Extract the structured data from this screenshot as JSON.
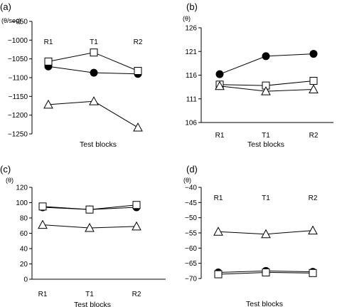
{
  "chart_data": [
    {
      "type": "line",
      "panel_label": "(a)",
      "unit_label": "(θ/sec)",
      "xlabel": "Test blocks",
      "categories": [
        "R1",
        "T1",
        "R2"
      ],
      "category_labels_position": "top",
      "ylim": [
        -1250,
        -950
      ],
      "y_ticks": [
        -950,
        -1000,
        -1050,
        -1100,
        -1150,
        -1200,
        -1250
      ],
      "series": [
        {
          "marker": "filled-circle",
          "values": [
            -1070,
            -1087,
            -1090
          ]
        },
        {
          "marker": "open-square",
          "values": [
            -1057,
            -1033,
            -1082
          ]
        },
        {
          "marker": "open-triangle",
          "values": [
            -1172,
            -1163,
            -1233
          ]
        }
      ]
    },
    {
      "type": "line",
      "panel_label": "(b)",
      "unit_label": "(θ)",
      "xlabel": "Test blocks",
      "categories": [
        "R1",
        "T1",
        "R2"
      ],
      "category_labels_position": "bottom",
      "ylim": [
        106,
        126
      ],
      "y_ticks": [
        126,
        121,
        116,
        111,
        106
      ],
      "series": [
        {
          "marker": "filled-circle",
          "values": [
            116.2,
            120.0,
            120.5
          ]
        },
        {
          "marker": "open-square",
          "values": [
            114.0,
            113.8,
            114.8
          ]
        },
        {
          "marker": "open-triangle",
          "values": [
            113.7,
            112.6,
            113.0
          ]
        }
      ]
    },
    {
      "type": "line",
      "panel_label": "(c)",
      "unit_label": "(θ)",
      "xlabel": "Test blocks",
      "categories": [
        "R1",
        "T1",
        "R2"
      ],
      "category_labels_position": "bottom",
      "ylim": [
        0,
        120
      ],
      "y_ticks": [
        120,
        100,
        80,
        60,
        40,
        20,
        0
      ],
      "series": [
        {
          "marker": "filled-circle",
          "values": [
            94,
            91,
            94
          ]
        },
        {
          "marker": "open-square",
          "values": [
            95,
            91,
            97
          ]
        },
        {
          "marker": "open-triangle",
          "values": [
            71,
            67,
            69
          ]
        }
      ]
    },
    {
      "type": "line",
      "panel_label": "(d)",
      "unit_label": "(θ)",
      "xlabel": "Test blocks",
      "categories": [
        "R1",
        "T1",
        "R2"
      ],
      "category_labels_position": "top",
      "ylim": [
        -70,
        -40
      ],
      "y_ticks": [
        -40,
        -45,
        -50,
        -55,
        -60,
        -65,
        -70
      ],
      "series": [
        {
          "marker": "filled-circle",
          "values": [
            -68.0,
            -67.5,
            -67.8
          ]
        },
        {
          "marker": "open-square",
          "values": [
            -68.6,
            -68.0,
            -68.2
          ]
        },
        {
          "marker": "open-triangle",
          "values": [
            -54.6,
            -55.4,
            -54.2
          ]
        }
      ]
    }
  ]
}
